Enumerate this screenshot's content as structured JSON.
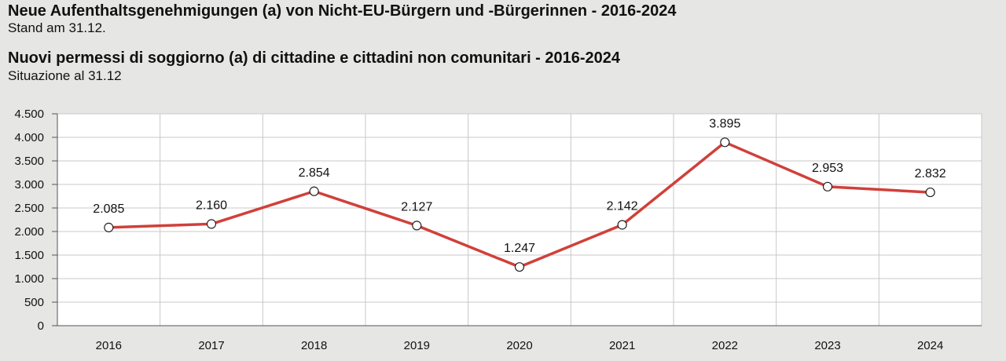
{
  "header": {
    "title_de": "Neue Aufenthaltsgenehmigungen (a) von Nicht-EU-Bürgern und -Bürgerinnen - 2016-2024",
    "subtitle_de": "Stand am 31.12.",
    "title_it": "Nuovi permessi di soggiorno (a) di cittadine e cittadini non comunitari - 2016-2024",
    "subtitle_it": "Situazione al 31.12"
  },
  "chart_data": {
    "type": "line",
    "categories": [
      "2016",
      "2017",
      "2018",
      "2019",
      "2020",
      "2021",
      "2022",
      "2023",
      "2024"
    ],
    "values": [
      2085,
      2160,
      2854,
      2127,
      1247,
      2142,
      3895,
      2953,
      2832
    ],
    "value_labels": [
      "2.085",
      "2.160",
      "2.854",
      "2.127",
      "1.247",
      "2.142",
      "3.895",
      "2.953",
      "2.832"
    ],
    "ylim": [
      0,
      4500
    ],
    "y_ticks": [
      0,
      500,
      1000,
      1500,
      2000,
      2500,
      3000,
      3500,
      4000,
      4500
    ],
    "y_tick_labels": [
      "0",
      "500",
      "1.000",
      "1.500",
      "2.000",
      "2.500",
      "3.000",
      "3.500",
      "4.000",
      "4.500"
    ],
    "grid": true,
    "line_color": "#d0403a",
    "marker_fill": "#ffffff"
  }
}
